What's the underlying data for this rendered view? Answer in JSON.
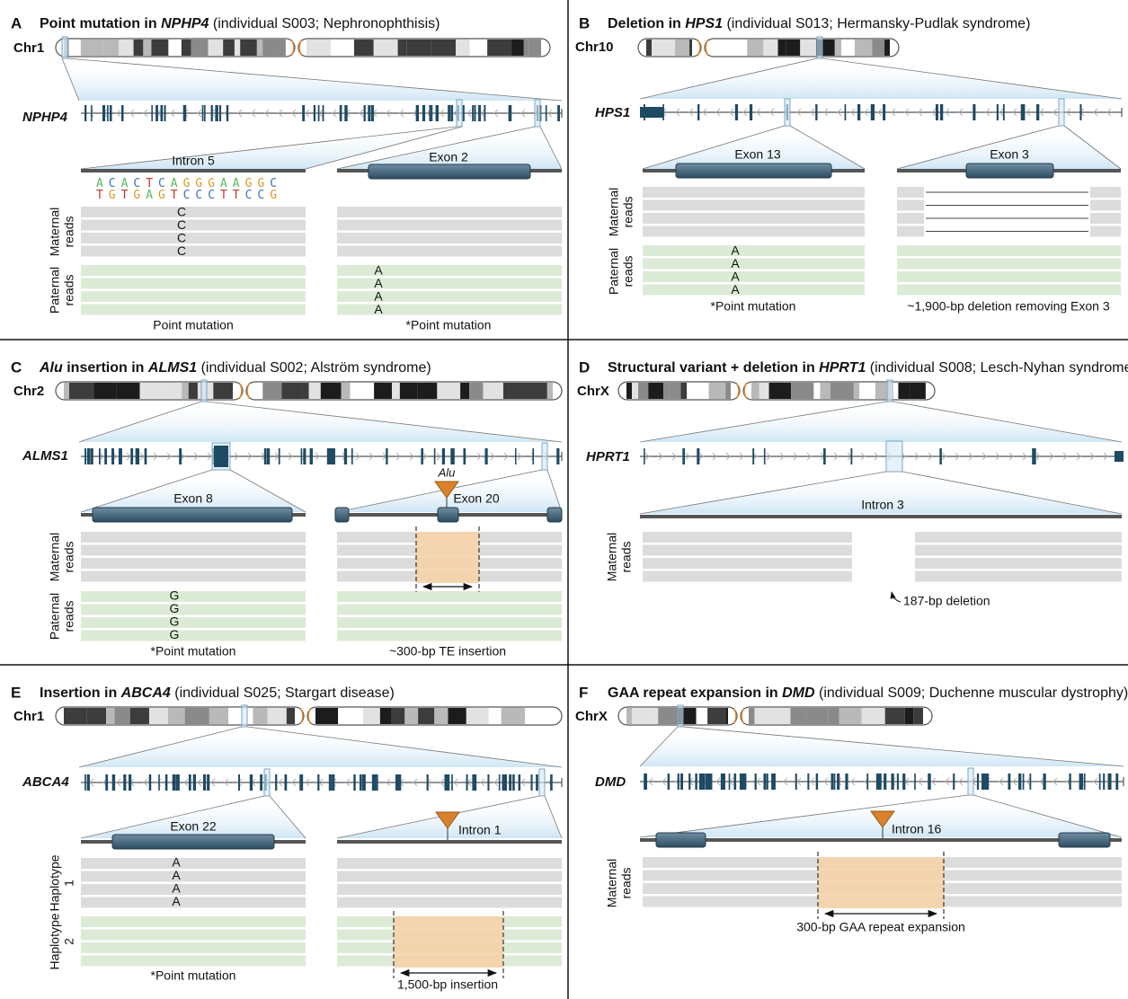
{
  "panels": [
    {
      "letter": "A",
      "title": [
        "Point mutation in ",
        "NPHP4",
        " (individual S003; Nephronophthisis)"
      ],
      "chromosome": "Chr1",
      "gene": "NPHP4",
      "left_region": "Intron 5",
      "right_region": "Exon 2",
      "sequence": [
        "ACACTCAGGGAAGGC",
        "TGTGAGTCCCTTCCG"
      ],
      "read_labels": [
        [
          "Maternal",
          "reads"
        ],
        [
          "Paternal",
          "reads"
        ]
      ],
      "left_base": "C",
      "right_base": "A",
      "captions": [
        "Point mutation",
        "*Point mutation"
      ]
    },
    {
      "letter": "B",
      "title": [
        "Deletion in ",
        "HPS1",
        " (individual S013; Hermansky-Pudlak syndrome)"
      ],
      "chromosome": "Chr10",
      "gene": "HPS1",
      "left_region": "Exon 13",
      "right_region": "Exon 3",
      "read_labels": [
        [
          "Maternal",
          "reads"
        ],
        [
          "Paternal",
          "reads"
        ]
      ],
      "left_base": "A",
      "captions": [
        "*Point mutation",
        "~1,900-bp deletion removing Exon 3"
      ]
    },
    {
      "letter": "C",
      "title": [
        "Alu",
        " insertion in ",
        "ALMS1",
        " (individual S002; Alström syndrome)"
      ],
      "chromosome": "Chr2",
      "gene": "ALMS1",
      "left_region": "Exon 8",
      "right_region": "Exon 20",
      "insert_label": "Alu",
      "read_labels": [
        [
          "Maternal",
          "reads"
        ],
        [
          "Paternal",
          "reads"
        ]
      ],
      "left_base": "G",
      "captions": [
        "*Point mutation",
        "~300-bp TE insertion"
      ]
    },
    {
      "letter": "D",
      "title": [
        "Structural variant + deletion in ",
        "HPRT1",
        " (individual S008; Lesch-Nyhan syndrome)"
      ],
      "chromosome": "ChrX",
      "gene": "HPRT1",
      "region": "Intron 3",
      "read_labels": [
        [
          "Maternal",
          "reads"
        ]
      ],
      "captions": [
        "187-bp deletion"
      ]
    },
    {
      "letter": "E",
      "title": [
        "Insertion in ",
        "ABCA4",
        " (individual S025; Stargart disease)"
      ],
      "chromosome": "Chr1",
      "gene": "ABCA4",
      "left_region": "Exon 22",
      "right_region": "Intron 1",
      "read_labels": [
        [
          "Haplotype",
          "1"
        ],
        [
          "Haplotype",
          "2"
        ]
      ],
      "left_base": "A",
      "captions": [
        "*Point mutation",
        "1,500-bp insertion"
      ]
    },
    {
      "letter": "F",
      "title": [
        "GAA repeat expansion in ",
        "DMD",
        " (individual S009; Duchenne muscular dystrophy)"
      ],
      "chromosome": "ChrX",
      "gene": "DMD",
      "region": "Intron 16",
      "read_labels": [
        [
          "Maternal",
          "reads"
        ]
      ],
      "captions": [
        "300-bp GAA repeat expansion"
      ]
    }
  ]
}
